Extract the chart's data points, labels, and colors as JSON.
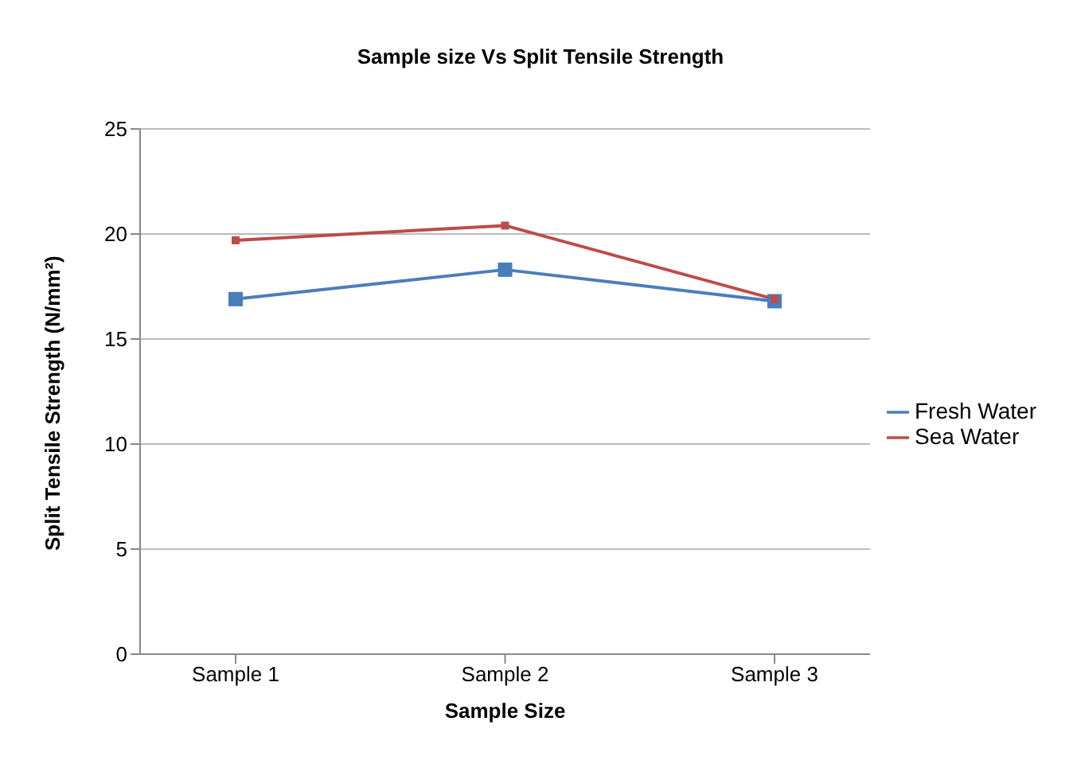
{
  "chart_data": {
    "type": "line",
    "title": "Sample size Vs Split Tensile Strength",
    "xlabel": "Sample Size",
    "ylabel": "Split Tensile Strength (N/mm²)",
    "categories": [
      "Sample 1",
      "Sample 2",
      "Sample 3"
    ],
    "series": [
      {
        "name": "Fresh Water",
        "color": "#4a7ebb",
        "values": [
          16.9,
          18.3,
          16.8
        ]
      },
      {
        "name": "Sea Water",
        "color": "#be4b48",
        "values": [
          19.7,
          20.4,
          16.9
        ]
      }
    ],
    "ylim": [
      0,
      25
    ],
    "yticks": [
      0,
      5,
      10,
      15,
      20,
      25
    ],
    "grid": "y",
    "legend": "right",
    "marker": "square",
    "line_style": "solid"
  }
}
